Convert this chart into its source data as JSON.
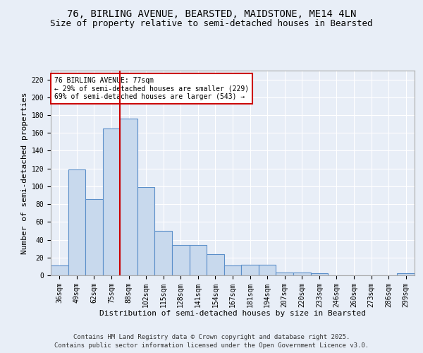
{
  "title1": "76, BIRLING AVENUE, BEARSTED, MAIDSTONE, ME14 4LN",
  "title2": "Size of property relative to semi-detached houses in Bearsted",
  "xlabel": "Distribution of semi-detached houses by size in Bearsted",
  "ylabel": "Number of semi-detached properties",
  "categories": [
    "36sqm",
    "49sqm",
    "62sqm",
    "75sqm",
    "88sqm",
    "102sqm",
    "115sqm",
    "128sqm",
    "141sqm",
    "154sqm",
    "167sqm",
    "181sqm",
    "194sqm",
    "207sqm",
    "220sqm",
    "233sqm",
    "246sqm",
    "260sqm",
    "273sqm",
    "286sqm",
    "299sqm"
  ],
  "values": [
    11,
    119,
    86,
    165,
    176,
    99,
    50,
    34,
    34,
    24,
    11,
    12,
    12,
    3,
    3,
    2,
    0,
    0,
    0,
    0,
    2
  ],
  "bar_color": "#c8d9ed",
  "bar_edge_color": "#5b8fc9",
  "vline_color": "#cc0000",
  "vline_x": 3.5,
  "annotation_line1": "76 BIRLING AVENUE: 77sqm",
  "annotation_line2": "← 29% of semi-detached houses are smaller (229)",
  "annotation_line3": "69% of semi-detached houses are larger (543) →",
  "annotation_box_color": "#ffffff",
  "annotation_box_edge": "#cc0000",
  "ylim": [
    0,
    230
  ],
  "yticks": [
    0,
    20,
    40,
    60,
    80,
    100,
    120,
    140,
    160,
    180,
    200,
    220
  ],
  "background_color": "#e8eef7",
  "grid_color": "#ffffff",
  "footer1": "Contains HM Land Registry data © Crown copyright and database right 2025.",
  "footer2": "Contains public sector information licensed under the Open Government Licence v3.0.",
  "title1_fontsize": 10,
  "title2_fontsize": 9,
  "annotation_fontsize": 7,
  "axis_fontsize": 7,
  "xlabel_fontsize": 8,
  "ylabel_fontsize": 8,
  "footer_fontsize": 6.5
}
